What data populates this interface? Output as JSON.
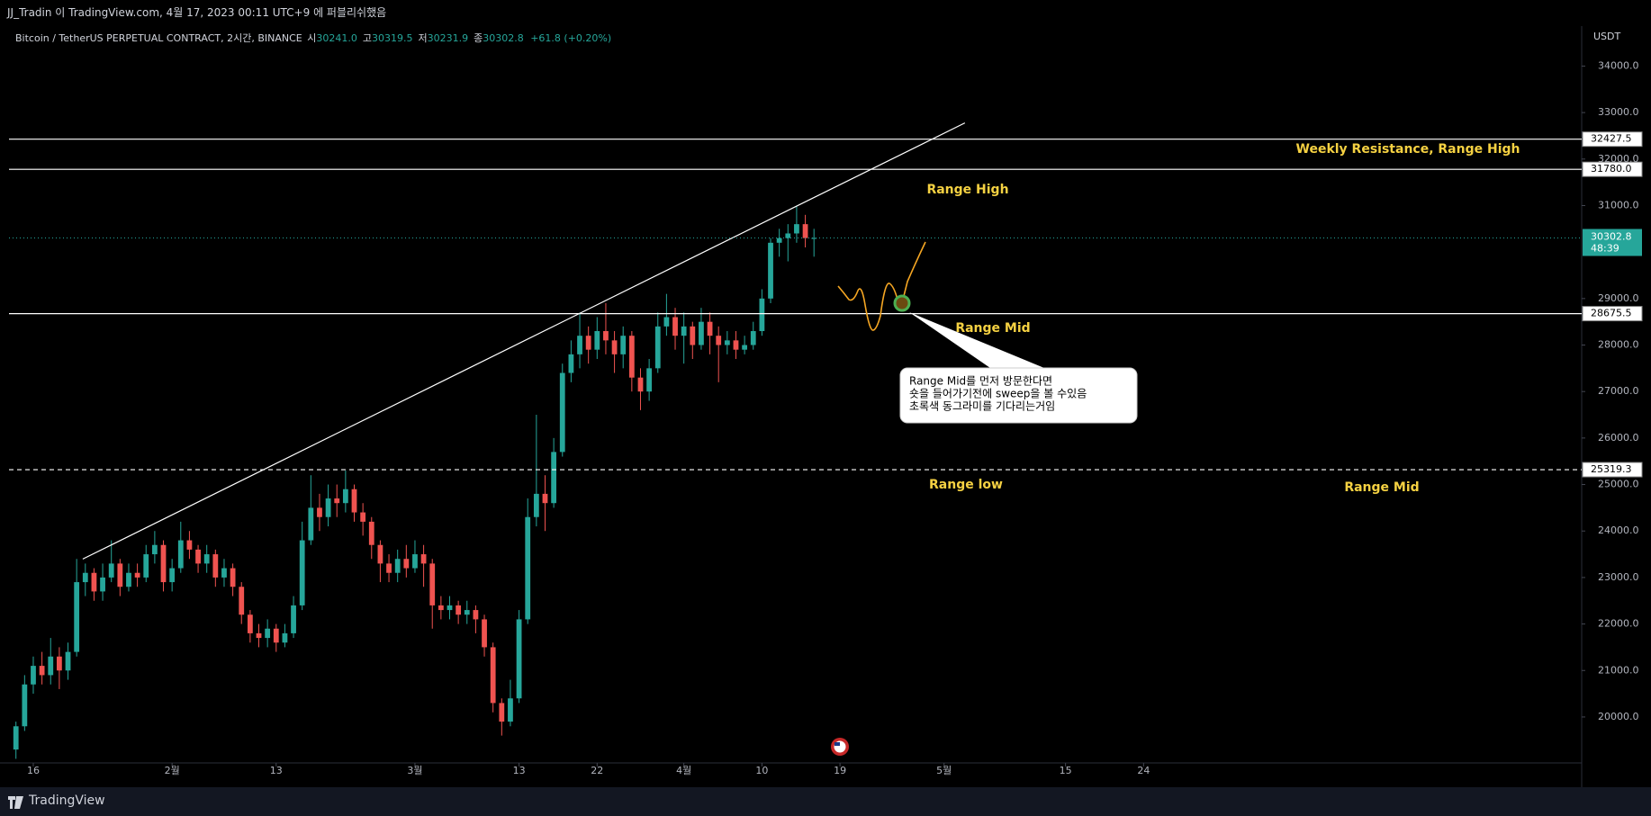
{
  "header": {
    "publish_line": "JJ_Tradin 이 TradingView.com, 4월 17, 2023 00:11 UTC+9 에 퍼블리쉬했음"
  },
  "legend": {
    "symbol": "Bitcoin / TetherUS PERPETUAL CONTRACT, 2시간, BINANCE",
    "ohlc": [
      {
        "key": "시",
        "value": "30241.0"
      },
      {
        "key": "고",
        "value": "30319.5"
      },
      {
        "key": "저",
        "value": "30231.9"
      },
      {
        "key": "종",
        "value": "30302.8"
      }
    ],
    "change": "+61.8 (+0.20%)"
  },
  "chart_data": {
    "type": "candlestick",
    "currency": "USDT",
    "up_color": "#26a69a",
    "down_color": "#ef5350",
    "grid": false,
    "x": [
      -2,
      -1,
      0,
      1,
      2,
      3,
      4,
      5,
      6,
      7,
      8,
      9,
      10,
      11,
      12,
      13,
      14,
      15,
      16,
      17,
      18,
      19,
      20,
      21,
      22,
      23,
      24,
      25,
      26,
      27,
      28,
      29,
      30,
      31,
      32,
      33,
      34,
      35,
      36,
      37,
      38,
      39,
      40,
      41,
      42,
      43,
      44,
      45,
      46,
      47,
      48,
      49,
      50,
      51,
      52,
      53,
      54,
      55,
      56,
      57,
      58,
      59,
      60,
      61,
      62,
      63,
      64,
      65,
      66,
      67,
      68,
      69,
      70,
      71,
      72,
      73,
      74,
      75,
      76,
      77,
      78,
      79,
      80,
      81,
      82,
      83,
      84,
      85,
      86,
      87,
      88,
      89,
      90
    ],
    "open": [
      19300,
      19800,
      20700,
      21100,
      20900,
      21300,
      21000,
      21400,
      22900,
      23100,
      22700,
      23000,
      23300,
      22800,
      23100,
      23000,
      23500,
      23700,
      22900,
      23200,
      23800,
      23600,
      23300,
      23500,
      23000,
      23200,
      22800,
      22200,
      21800,
      21700,
      21900,
      21600,
      21800,
      22400,
      23800,
      24500,
      24300,
      24700,
      24600,
      24900,
      24400,
      24200,
      23700,
      23300,
      23100,
      23400,
      23200,
      23500,
      23300,
      22400,
      22300,
      22400,
      22200,
      22300,
      22100,
      21500,
      20300,
      19900,
      20400,
      22100,
      24300,
      24800,
      24600,
      25700,
      27400,
      27800,
      28200,
      27900,
      28300,
      28100,
      27800,
      28200,
      27300,
      27000,
      27500,
      28400,
      28600,
      28200,
      28400,
      28000,
      28500,
      28200,
      28000,
      28100,
      27900,
      28000,
      28300,
      29000,
      30200,
      30300,
      30400,
      30600,
      30300
    ],
    "high": [
      19900,
      20900,
      21300,
      21400,
      21700,
      21500,
      21600,
      23400,
      23300,
      23200,
      23300,
      23800,
      23400,
      23300,
      23300,
      23700,
      24000,
      23800,
      23400,
      24200,
      24000,
      23700,
      23700,
      23600,
      23400,
      23300,
      22900,
      22300,
      22000,
      22100,
      22000,
      22000,
      22600,
      24200,
      25200,
      24800,
      25000,
      25000,
      25300,
      25000,
      24600,
      24300,
      23800,
      23500,
      23600,
      23700,
      23800,
      23700,
      23400,
      22600,
      22600,
      22500,
      22500,
      22400,
      22200,
      21600,
      20400,
      20800,
      22300,
      24700,
      26500,
      25200,
      26000,
      27600,
      28100,
      28700,
      28400,
      28600,
      28900,
      28300,
      28400,
      28300,
      27500,
      27700,
      28700,
      29100,
      28800,
      28700,
      28500,
      28800,
      28700,
      28400,
      28300,
      28300,
      28200,
      28500,
      29200,
      30300,
      30500,
      30600,
      31000,
      30800,
      30500
    ],
    "low": [
      19100,
      19700,
      20500,
      20700,
      20700,
      20600,
      20800,
      21300,
      22600,
      22500,
      22500,
      22900,
      22600,
      22700,
      22800,
      22900,
      23300,
      22700,
      22700,
      23100,
      23400,
      23100,
      23100,
      22800,
      22800,
      22600,
      22000,
      21600,
      21500,
      21500,
      21400,
      21500,
      21700,
      22300,
      23700,
      24000,
      24100,
      24300,
      24400,
      24200,
      23900,
      23400,
      22900,
      22900,
      22900,
      23000,
      23100,
      22800,
      21900,
      22100,
      22100,
      22000,
      22000,
      21800,
      21300,
      20100,
      19600,
      19800,
      20300,
      22000,
      24100,
      24000,
      24500,
      25600,
      27200,
      27500,
      27600,
      27700,
      27800,
      27400,
      27500,
      27000,
      26600,
      26800,
      27400,
      28200,
      27900,
      27600,
      27700,
      27900,
      27800,
      27200,
      27800,
      27700,
      27800,
      27900,
      28200,
      28900,
      29900,
      29800,
      30200,
      30100,
      29900
    ],
    "close": [
      19800,
      20700,
      21100,
      20900,
      21300,
      21000,
      21400,
      22900,
      23100,
      22700,
      23000,
      23300,
      22800,
      23100,
      23000,
      23500,
      23700,
      22900,
      23200,
      23800,
      23600,
      23300,
      23500,
      23000,
      23200,
      22800,
      22200,
      21800,
      21700,
      21900,
      21600,
      21800,
      22400,
      23800,
      24500,
      24300,
      24700,
      24600,
      24900,
      24400,
      24200,
      23700,
      23300,
      23100,
      23400,
      23200,
      23500,
      23300,
      22400,
      22300,
      22400,
      22200,
      22300,
      22100,
      21500,
      20300,
      19900,
      20400,
      22100,
      24300,
      24800,
      24600,
      25700,
      27400,
      27800,
      28200,
      27900,
      28300,
      28100,
      27800,
      28200,
      27300,
      27000,
      27500,
      28400,
      28600,
      28200,
      28400,
      28000,
      28500,
      28200,
      28000,
      28100,
      27900,
      28000,
      28300,
      29000,
      30200,
      30300,
      30400,
      30600,
      30300,
      30302.8
    ],
    "xlim": [
      -2.8,
      178.4
    ],
    "xticks": [
      {
        "value": 0,
        "label": "16"
      },
      {
        "value": 16,
        "label": "2월"
      },
      {
        "value": 28,
        "label": "13"
      },
      {
        "value": 44,
        "label": "3월"
      },
      {
        "value": 56,
        "label": "13"
      },
      {
        "value": 65,
        "label": "22"
      },
      {
        "value": 75,
        "label": "4월"
      },
      {
        "value": 84,
        "label": "10"
      },
      {
        "value": 93,
        "label": "19"
      },
      {
        "value": 105,
        "label": "5월"
      },
      {
        "value": 119,
        "label": "15"
      },
      {
        "value": 128,
        "label": "24"
      }
    ],
    "ylim": [
      19070,
      34860
    ],
    "yticks": [
      {
        "value": 20000,
        "label": "20000.0"
      },
      {
        "value": 21000,
        "label": "21000.0"
      },
      {
        "value": 22000,
        "label": "22000.0"
      },
      {
        "value": 23000,
        "label": "23000.0"
      },
      {
        "value": 24000,
        "label": "24000.0"
      },
      {
        "value": 25000,
        "label": "25000.0"
      },
      {
        "value": 26000,
        "label": "26000.0"
      },
      {
        "value": 27000,
        "label": "27000.0"
      },
      {
        "value": 28000,
        "label": "28000.0"
      },
      {
        "value": 29000,
        "label": "29000.0"
      },
      {
        "value": 31000,
        "label": "31000.0"
      },
      {
        "value": 32000,
        "label": "32000.0"
      },
      {
        "value": 33000,
        "label": "33000.0"
      },
      {
        "value": 34000,
        "label": "34000.0"
      }
    ],
    "levels": [
      32427.5,
      {
        "value": 31780,
        "label": "31780.0"
      },
      28675.5,
      25319.3
    ],
    "level_dashed": [
      false,
      false,
      false,
      true
    ],
    "current_price": 30302.8,
    "countdown": "48:39",
    "trendline": {
      "x": [
        5.7,
        107.4
      ],
      "y": [
        23397,
        32777
      ]
    },
    "annotations": [
      "Weekly Resistance, Range High",
      "Range High",
      "Range Mid",
      "Range low",
      "Range Mid"
    ]
  },
  "callout": {
    "lines": [
      "Range Mid를 먼저 방문한다면",
      "숏을 들어가기전에 sweep을 볼 수있음",
      "초록색 동그라미를 기다리는거임"
    ]
  },
  "footer": {
    "brand": "TradingView"
  }
}
